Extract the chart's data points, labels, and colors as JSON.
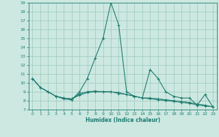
{
  "xlabel": "Humidex (Indice chaleur)",
  "x": [
    0,
    1,
    2,
    3,
    4,
    5,
    6,
    7,
    8,
    9,
    10,
    11,
    12,
    13,
    14,
    15,
    16,
    17,
    18,
    19,
    20,
    21,
    22,
    23
  ],
  "series1": [
    10.5,
    9.5,
    9.0,
    8.5,
    8.2,
    8.1,
    9.0,
    10.5,
    12.8,
    15.0,
    19.0,
    16.5,
    9.0,
    8.5,
    8.3,
    11.5,
    10.5,
    9.0,
    8.5,
    8.3,
    8.3,
    7.5,
    8.7,
    7.3
  ],
  "series2": [
    10.5,
    9.5,
    9.0,
    8.5,
    8.3,
    8.2,
    8.8,
    9.0,
    9.0,
    9.0,
    9.0,
    8.9,
    8.7,
    8.5,
    8.3,
    8.3,
    8.2,
    8.1,
    8.0,
    7.9,
    7.8,
    7.6,
    7.5,
    7.3
  ],
  "series3": [
    10.5,
    9.5,
    9.0,
    8.5,
    8.3,
    8.2,
    8.7,
    9.0,
    9.1,
    9.0,
    9.0,
    8.9,
    8.7,
    8.5,
    8.3,
    8.3,
    8.2,
    8.1,
    8.0,
    7.9,
    7.8,
    7.6,
    7.5,
    7.3
  ],
  "series4": [
    10.5,
    9.5,
    9.0,
    8.5,
    8.3,
    8.2,
    8.6,
    8.9,
    9.0,
    9.0,
    9.0,
    8.8,
    8.7,
    8.5,
    8.3,
    8.2,
    8.1,
    8.0,
    7.9,
    7.8,
    7.7,
    7.5,
    7.4,
    7.3
  ],
  "line_color": "#1a7a6e",
  "bg_color": "#cce8e0",
  "grid_color": "#9ac8bc",
  "ylim": [
    7,
    19
  ],
  "xlim": [
    -0.5,
    23.5
  ],
  "yticks": [
    7,
    8,
    9,
    10,
    11,
    12,
    13,
    14,
    15,
    16,
    17,
    18,
    19
  ],
  "xticks": [
    0,
    1,
    2,
    3,
    4,
    5,
    6,
    7,
    8,
    9,
    10,
    11,
    12,
    13,
    14,
    15,
    16,
    17,
    18,
    19,
    20,
    21,
    22,
    23
  ]
}
